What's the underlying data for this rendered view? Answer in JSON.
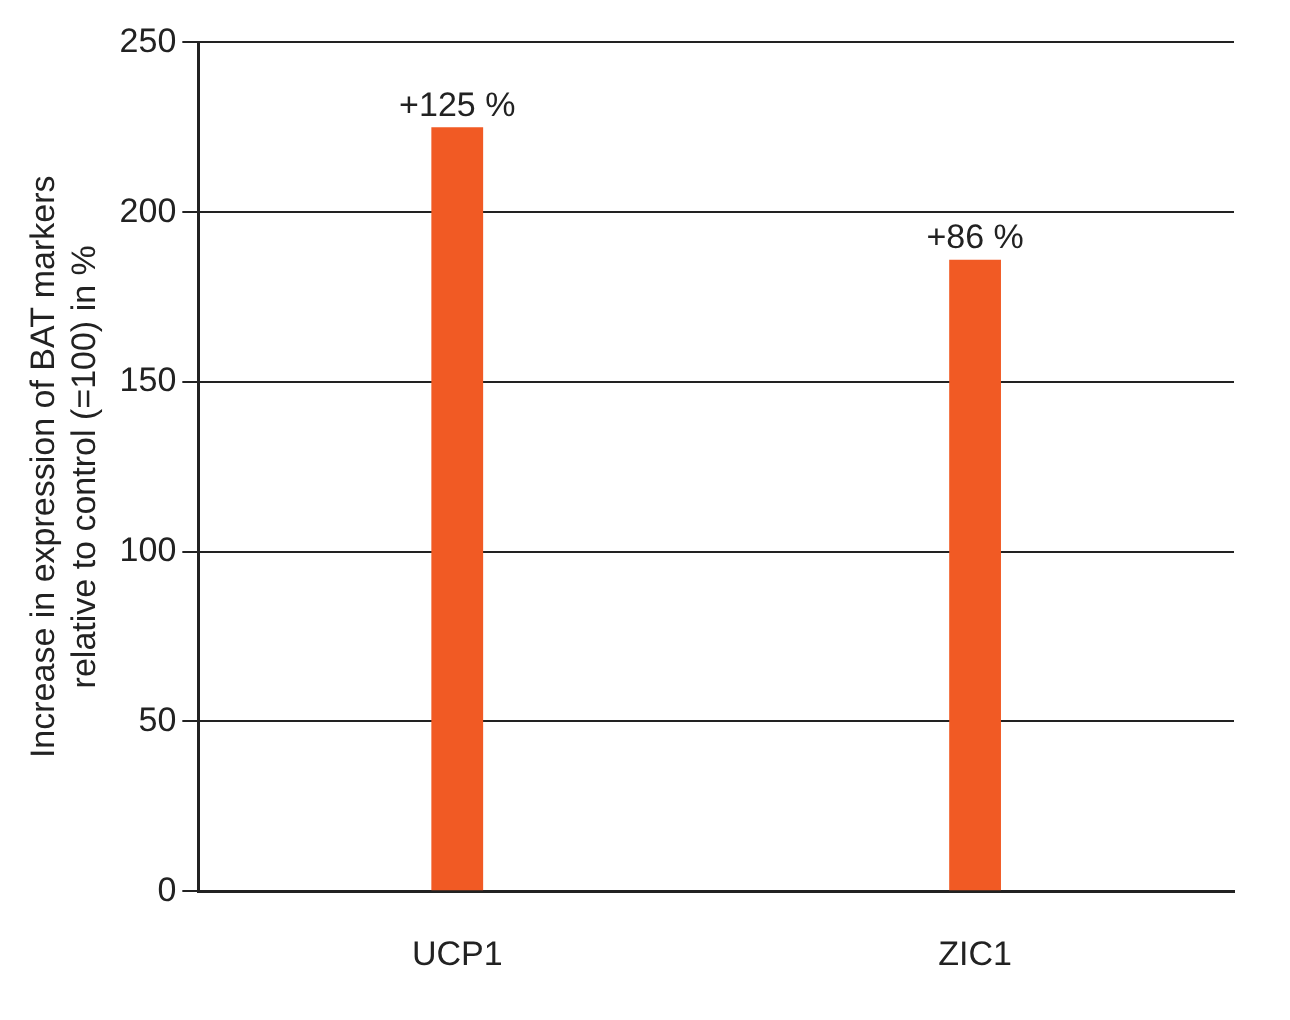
{
  "chart_data": {
    "type": "bar",
    "ylabel": "Increase in expression of BAT markers\nrelative to control (=100) in %",
    "categories": [
      "UCP1",
      "ZIC1"
    ],
    "series": [
      {
        "color": "#f15a24",
        "values": [
          225,
          186
        ]
      }
    ],
    "annotations": [
      {
        "text": "+125 %",
        "x": "UCP1",
        "y": 225
      },
      {
        "text": "+86 %",
        "x": "ZIC1",
        "y": 186
      }
    ],
    "ylim": [
      0,
      250
    ],
    "yticks": [
      0,
      50,
      100,
      150,
      200,
      250
    ],
    "grid": "y",
    "legend": false
  }
}
